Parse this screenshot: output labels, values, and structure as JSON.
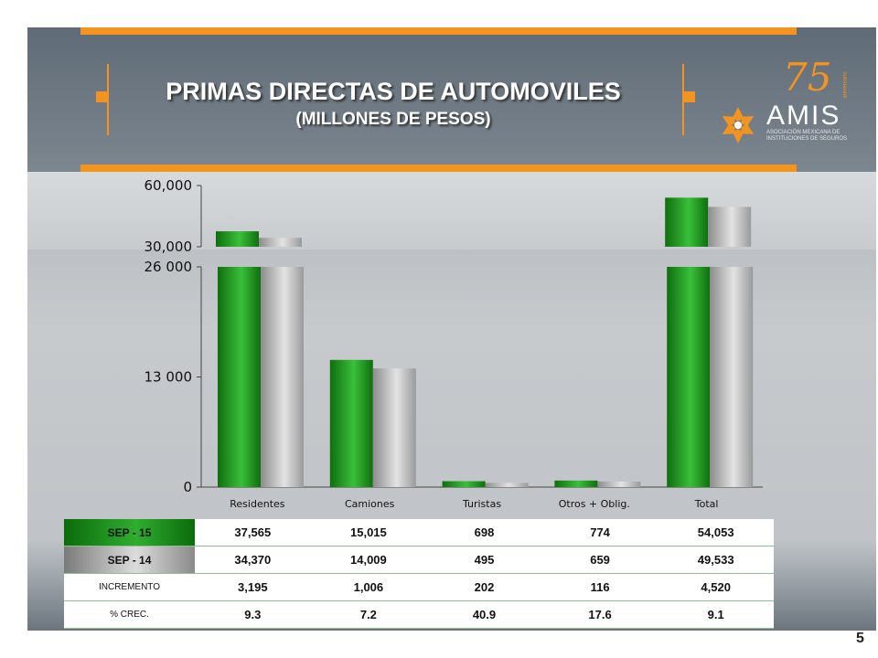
{
  "title": {
    "line1": "PRIMAS DIRECTAS DE AUTOMOVILES",
    "line2": "(MILLONES DE PESOS)"
  },
  "logo": {
    "anniversary": "75",
    "anniversary_small": "aniversario",
    "name": "AMIS",
    "subtitle": "ASOCIACIÓN MEXICANA DE INSTITUCIONES DE SEGUROS"
  },
  "chart_data": {
    "type": "bar",
    "categories": [
      "Residentes",
      "Camiones",
      "Turistas",
      "Otros + Oblig.",
      "Total"
    ],
    "series": [
      {
        "name": "SEP - 15",
        "values": [
          37565,
          15015,
          698,
          774,
          54053
        ],
        "color": "#1f9a1f"
      },
      {
        "name": "SEP - 14",
        "values": [
          34370,
          14009,
          495,
          659,
          49533
        ],
        "color": "#b5b5b5"
      }
    ],
    "axis_break": true,
    "lower_axis": {
      "ylim": [
        0,
        26000
      ],
      "ticks": [
        "0",
        "13 000",
        "26 000"
      ]
    },
    "upper_axis": {
      "ylim": [
        30000,
        60000
      ],
      "ticks": [
        "30,000",
        "60,000"
      ]
    },
    "title": "",
    "xlabel": "",
    "ylabel": "",
    "grid": false
  },
  "table": {
    "rows": [
      {
        "label": "SEP - 15",
        "values": [
          "37,565",
          "15,015",
          "698",
          "774",
          "54,053"
        ]
      },
      {
        "label": "SEP - 14",
        "values": [
          "34,370",
          "14,009",
          "495",
          "659",
          "49,533"
        ]
      },
      {
        "label": "INCREMENTO",
        "values": [
          "3,195",
          "1,006",
          "202",
          "116",
          "4,520"
        ]
      },
      {
        "label": "% CREC.",
        "values": [
          "9.3",
          "7.2",
          "40.9",
          "17.6",
          "9.1"
        ]
      }
    ]
  },
  "page_number": "5"
}
